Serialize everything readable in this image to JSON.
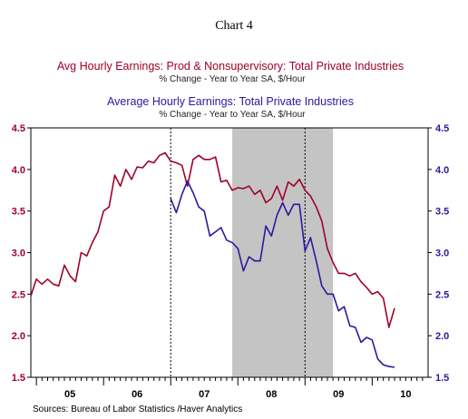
{
  "chart_data": {
    "type": "line",
    "title": "Chart 4",
    "source": "Sources:  Bureau of Labor Statistics /Haver Analytics",
    "x_tick_labels": [
      "05",
      "06",
      "07",
      "08",
      "09",
      "10"
    ],
    "x_range": [
      2004.917,
      2010.833
    ],
    "ylim": [
      1.5,
      4.5
    ],
    "y_ticks": [
      1.5,
      2.0,
      2.5,
      3.0,
      3.5,
      4.0,
      4.5
    ],
    "y_tick_labels": [
      "1.5",
      "2.0",
      "2.5",
      "3.0",
      "3.5",
      "4.0",
      "4.5"
    ],
    "grid": false,
    "recession_shading": {
      "from": 2007.917,
      "to": 2009.417
    },
    "vertical_reference_lines": [
      2007.0,
      2009.0
    ],
    "series": [
      {
        "name": "Avg Hourly Earnings: Prod & Nonsupervisory: Total Private Industries",
        "units": "% Change - Year to Year    SA, $/Hour",
        "color": "#a0002a",
        "axis": "left",
        "x": [
          2004.917,
          2005.0,
          2005.083,
          2005.167,
          2005.25,
          2005.333,
          2005.417,
          2005.5,
          2005.583,
          2005.667,
          2005.75,
          2005.833,
          2005.917,
          2006.0,
          2006.083,
          2006.167,
          2006.25,
          2006.333,
          2006.417,
          2006.5,
          2006.583,
          2006.667,
          2006.75,
          2006.833,
          2006.917,
          2007.0,
          2007.083,
          2007.167,
          2007.25,
          2007.333,
          2007.417,
          2007.5,
          2007.583,
          2007.667,
          2007.75,
          2007.833,
          2007.917,
          2008.0,
          2008.083,
          2008.167,
          2008.25,
          2008.333,
          2008.417,
          2008.5,
          2008.583,
          2008.667,
          2008.75,
          2008.833,
          2008.917,
          2009.0,
          2009.083,
          2009.167,
          2009.25,
          2009.333,
          2009.417,
          2009.5,
          2009.583,
          2009.667,
          2009.75,
          2009.833,
          2009.917,
          2010.0
        ],
        "values": [
          2.48,
          2.68,
          2.62,
          2.68,
          2.62,
          2.6,
          2.85,
          2.72,
          2.65,
          3.0,
          2.96,
          3.12,
          3.25,
          3.5,
          3.55,
          3.93,
          3.8,
          4.0,
          3.88,
          4.03,
          4.02,
          4.1,
          4.08,
          4.17,
          4.2,
          4.1,
          4.08,
          4.05,
          3.8,
          4.12,
          4.17,
          4.12,
          4.12,
          4.15,
          3.85,
          3.87,
          3.75,
          3.78,
          3.77,
          3.8,
          3.7,
          3.75,
          3.6,
          3.65,
          3.8,
          3.63,
          3.85,
          3.8,
          3.88,
          3.75,
          3.68,
          3.55,
          3.38,
          3.05,
          2.88,
          2.75,
          2.75,
          2.72,
          2.75,
          2.65,
          2.58,
          2.5
        ],
        "x_tail": [
          2010.083,
          2010.167,
          2010.25
        ],
        "values_tail": [
          2.53,
          2.45,
          2.1
        ]
      },
      {
        "name": "Average Hourly Earnings: Total Private Industries",
        "units": "% Change - Year to Year    SA, $/Hour",
        "color": "#2a1a9e",
        "axis": "right",
        "x": [
          2007.0,
          2007.083,
          2007.167,
          2007.25,
          2007.333,
          2007.417,
          2007.5,
          2007.583,
          2007.667,
          2007.75,
          2007.833,
          2007.917,
          2008.0,
          2008.083,
          2008.167,
          2008.25,
          2008.333,
          2008.417,
          2008.5,
          2008.583,
          2008.667,
          2008.75,
          2008.833,
          2008.917,
          2009.0,
          2009.083,
          2009.167,
          2009.25,
          2009.333,
          2009.417,
          2009.5,
          2009.583,
          2009.667,
          2009.75,
          2009.833,
          2009.917,
          2010.0,
          2010.083,
          2010.167,
          2010.25,
          2010.333
        ],
        "values": [
          3.65,
          3.48,
          3.7,
          3.86,
          3.72,
          3.55,
          3.5,
          3.2,
          3.25,
          3.3,
          3.15,
          3.12,
          3.05,
          2.78,
          2.95,
          2.9,
          2.9,
          3.32,
          3.2,
          3.45,
          3.6,
          3.45,
          3.58,
          3.58,
          3.02,
          3.18,
          2.9,
          2.6,
          2.5,
          2.5,
          2.3,
          2.35,
          2.12,
          2.1,
          1.92,
          1.98,
          1.95,
          1.72,
          1.65,
          1.63,
          1.62
        ]
      }
    ]
  }
}
